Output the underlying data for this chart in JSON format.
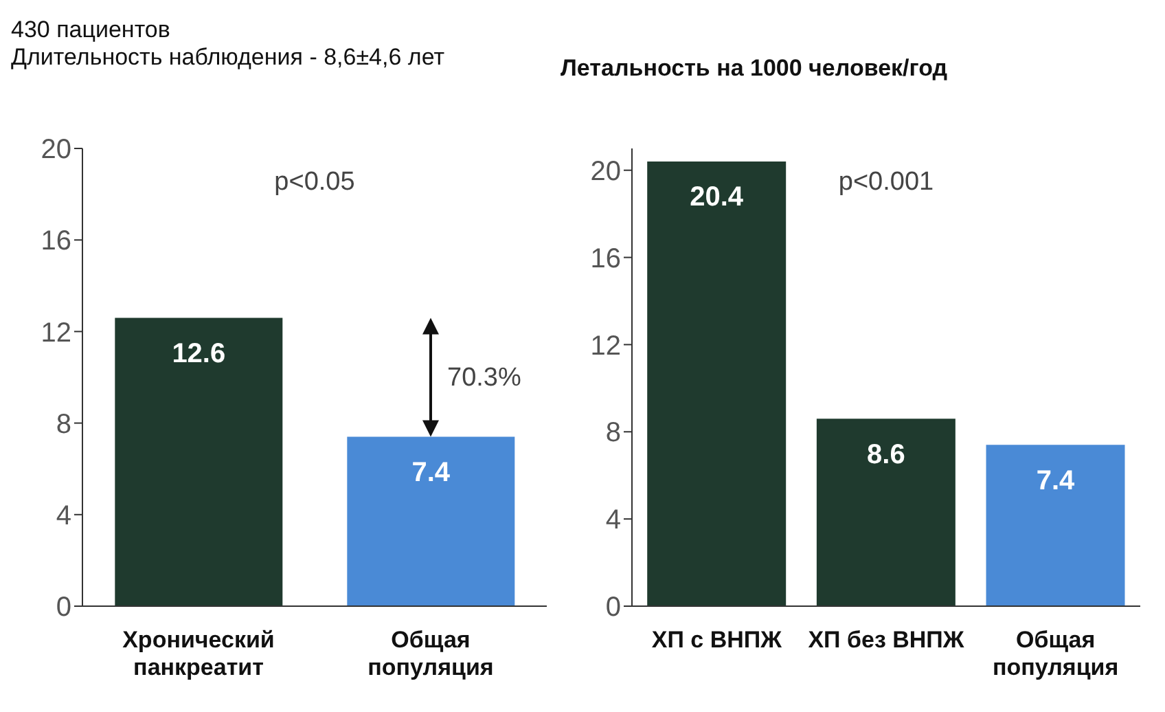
{
  "chart_data": [
    {
      "type": "bar",
      "title": "430 пациентов",
      "subtitle": "Длительность наблюдения - 8,6±4,6 лет",
      "categories": [
        "Хронический панкреатит",
        "Общая популяция"
      ],
      "values": [
        12.6,
        7.4
      ],
      "colors": [
        "#1f3a2e",
        "#4a8ad6"
      ],
      "ylim": [
        0,
        20
      ],
      "yticks": [
        0,
        4,
        8,
        12,
        16,
        20
      ],
      "grid": false,
      "data_labels": true,
      "annotations": [
        "p<0.05",
        "70.3%"
      ]
    },
    {
      "type": "bar",
      "title": "Летальность на 1000 человек/год",
      "categories": [
        "ХП с ВНПЖ",
        "ХП без ВНПЖ",
        "Общая популяция"
      ],
      "values": [
        20.4,
        8.6,
        7.4
      ],
      "colors": [
        "#1f3a2e",
        "#1f3a2e",
        "#4a8ad6"
      ],
      "ylim": [
        0,
        21
      ],
      "yticks": [
        0,
        4,
        8,
        12,
        16,
        20
      ],
      "grid": false,
      "data_labels": true,
      "annotations": [
        "p<0.001"
      ]
    }
  ]
}
